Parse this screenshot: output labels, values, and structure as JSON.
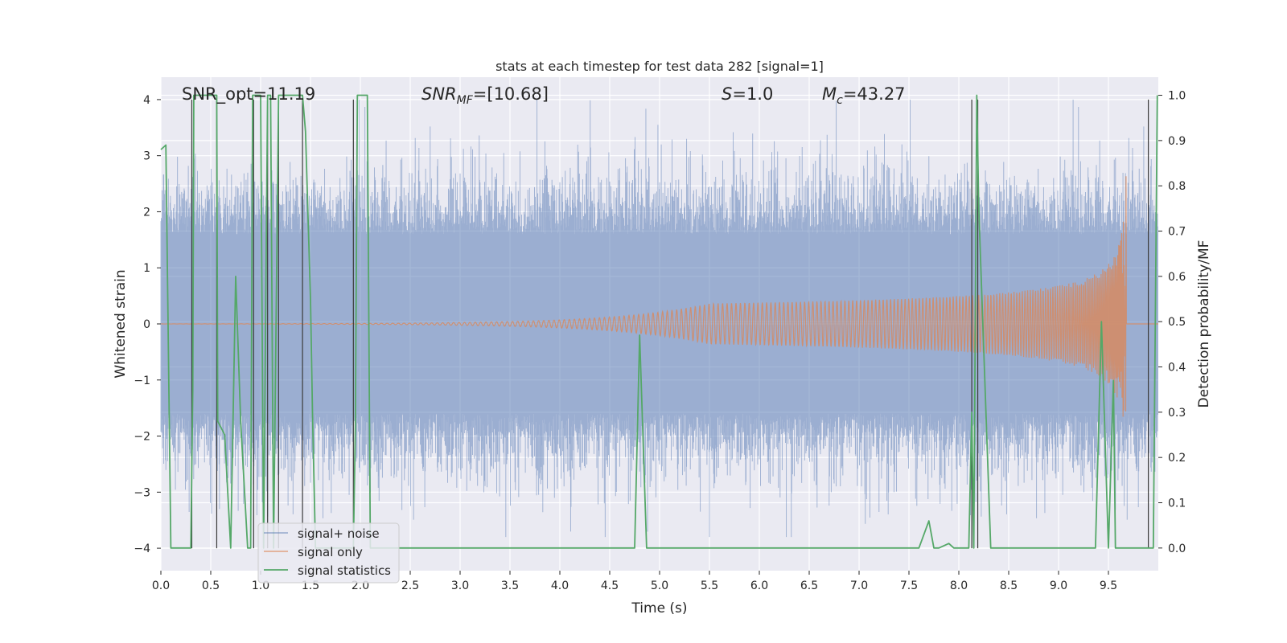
{
  "chart_data": {
    "type": "line",
    "title": "stats at each timestep for test data 282 [signal=1]",
    "xlabel": "Time (s)",
    "ylabel_left": "Whitened strain",
    "ylabel_right": "Detection probability/MF",
    "xlim": [
      0.0,
      10.0
    ],
    "ylim_left": [
      -4.4,
      4.4
    ],
    "ylim_right": [
      -0.05,
      1.04
    ],
    "x_ticks": [
      "0.0",
      "0.5",
      "1.0",
      "1.5",
      "2.0",
      "2.5",
      "3.0",
      "3.5",
      "4.0",
      "4.5",
      "5.0",
      "5.5",
      "6.0",
      "6.5",
      "7.0",
      "7.5",
      "8.0",
      "8.5",
      "9.0",
      "9.5"
    ],
    "y_ticks_left": [
      "−4",
      "−3",
      "−2",
      "−1",
      "0",
      "1",
      "2",
      "3",
      "4"
    ],
    "y_ticks_right": [
      "0.0",
      "0.1",
      "0.2",
      "0.3",
      "0.4",
      "0.5",
      "0.6",
      "0.7",
      "0.8",
      "0.9",
      "1.0"
    ],
    "grid": true,
    "legend_position": "lower-left",
    "annotations": {
      "snr_opt": "SNR_opt=11.19",
      "snr_mf_var": "SNR",
      "snr_mf_sub": "MF",
      "snr_mf_value": "=[10.68]",
      "s_var": "S",
      "s_value": "=1.0",
      "mc_var": "M",
      "mc_sub": "c",
      "mc_value": "=43.27"
    },
    "series": [
      {
        "name": "signal+ noise",
        "color": "#4c72b0",
        "description_stats": {
          "core_band": [
            -1.6,
            1.6
          ],
          "peak_max": 4.0,
          "peak_min": -3.8
        }
      },
      {
        "name": "signal only",
        "color": "#dd8452",
        "chirp_start_time": 5.5,
        "merger_time": 9.68,
        "peak_amplitude": 3.0
      },
      {
        "name": "signal statistics",
        "color": "#55a868",
        "axis": "right",
        "x": [
          0.0,
          0.05,
          0.1,
          0.13,
          0.16,
          0.3,
          0.32,
          0.33,
          0.34,
          0.55,
          0.56,
          0.57,
          0.64,
          0.7,
          0.75,
          0.8,
          0.87,
          0.9,
          0.92,
          0.95,
          1.0,
          1.03,
          1.07,
          1.1,
          1.13,
          1.18,
          1.2,
          1.25,
          1.38,
          1.42,
          1.45,
          1.5,
          1.52,
          1.55,
          1.6,
          1.7,
          1.93,
          1.95,
          1.97,
          2.0,
          2.07,
          2.1,
          2.15,
          2.3,
          2.5,
          3.0,
          3.5,
          4.0,
          4.5,
          4.75,
          4.8,
          4.87,
          5.0,
          6.0,
          7.0,
          7.6,
          7.7,
          7.75,
          7.8,
          7.9,
          7.95,
          8.0,
          8.1,
          8.13,
          8.15,
          8.18,
          8.2,
          8.32,
          8.5,
          9.0,
          9.25,
          9.37,
          9.43,
          9.5,
          9.55,
          9.57,
          9.6,
          9.65,
          9.68,
          9.7,
          9.9,
          9.95,
          9.99
        ],
        "y": [
          0.88,
          0.89,
          0.0,
          0.0,
          0.0,
          0.0,
          0.35,
          1.0,
          1.0,
          1.0,
          1.0,
          0.28,
          0.25,
          0.0,
          0.6,
          0.28,
          0.0,
          0.0,
          1.0,
          1.0,
          1.0,
          0.0,
          1.0,
          1.0,
          0.0,
          1.0,
          1.0,
          1.0,
          1.0,
          1.0,
          0.92,
          0.55,
          0.3,
          0.0,
          0.0,
          0.0,
          0.0,
          0.27,
          1.0,
          1.0,
          1.0,
          0.0,
          0.0,
          0.0,
          0.0,
          0.0,
          0.0,
          0.0,
          0.0,
          0.0,
          0.47,
          0.0,
          0.0,
          0.0,
          0.0,
          0.0,
          0.06,
          0.0,
          0.0,
          0.01,
          0.0,
          0.0,
          0.0,
          0.3,
          0.0,
          1.0,
          0.75,
          0.0,
          0.0,
          0.0,
          0.0,
          0.0,
          0.5,
          0.0,
          0.37,
          0.0,
          0.0,
          0.0,
          0.0,
          0.0,
          0.0,
          0.0,
          1.0
        ]
      }
    ],
    "vertical_markers": [
      0.31,
      0.56,
      0.93,
      1.07,
      1.18,
      1.42,
      1.93,
      8.13,
      8.19,
      9.9
    ]
  }
}
